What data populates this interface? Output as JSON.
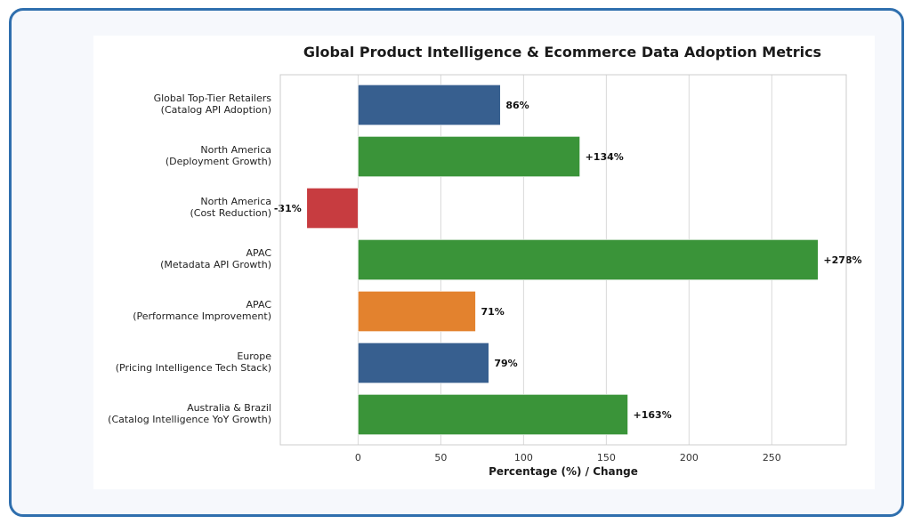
{
  "chart_data": {
    "type": "bar",
    "orientation": "horizontal",
    "title": "Global Product Intelligence & Ecommerce Data Adoption Metrics",
    "xlabel": "Percentage (%) / Change",
    "ylabel": "",
    "xlim": [
      -47,
      295
    ],
    "xticks": [
      0,
      50,
      100,
      150,
      200,
      250
    ],
    "grid": "vertical",
    "categories": [
      [
        "Global Top-Tier Retailers",
        "(Catalog API Adoption)"
      ],
      [
        "North America",
        "(Deployment Growth)"
      ],
      [
        "North America",
        "(Cost Reduction)"
      ],
      [
        "APAC",
        "(Metadata API Growth)"
      ],
      [
        "APAC",
        "(Performance Improvement)"
      ],
      [
        "Europe",
        "(Pricing Intelligence Tech Stack)"
      ],
      [
        "Australia & Brazil",
        "(Catalog Intelligence YoY Growth)"
      ]
    ],
    "values": [
      86,
      134,
      -31,
      278,
      71,
      79,
      163
    ],
    "data_labels": [
      "86%",
      "+134%",
      "-31%",
      "+278%",
      "71%",
      "79%",
      "+163%"
    ],
    "colors": [
      "#375f8f",
      "#3a9439",
      "#c73c40",
      "#3a9439",
      "#e3822e",
      "#375f8f",
      "#3a9439"
    ]
  }
}
